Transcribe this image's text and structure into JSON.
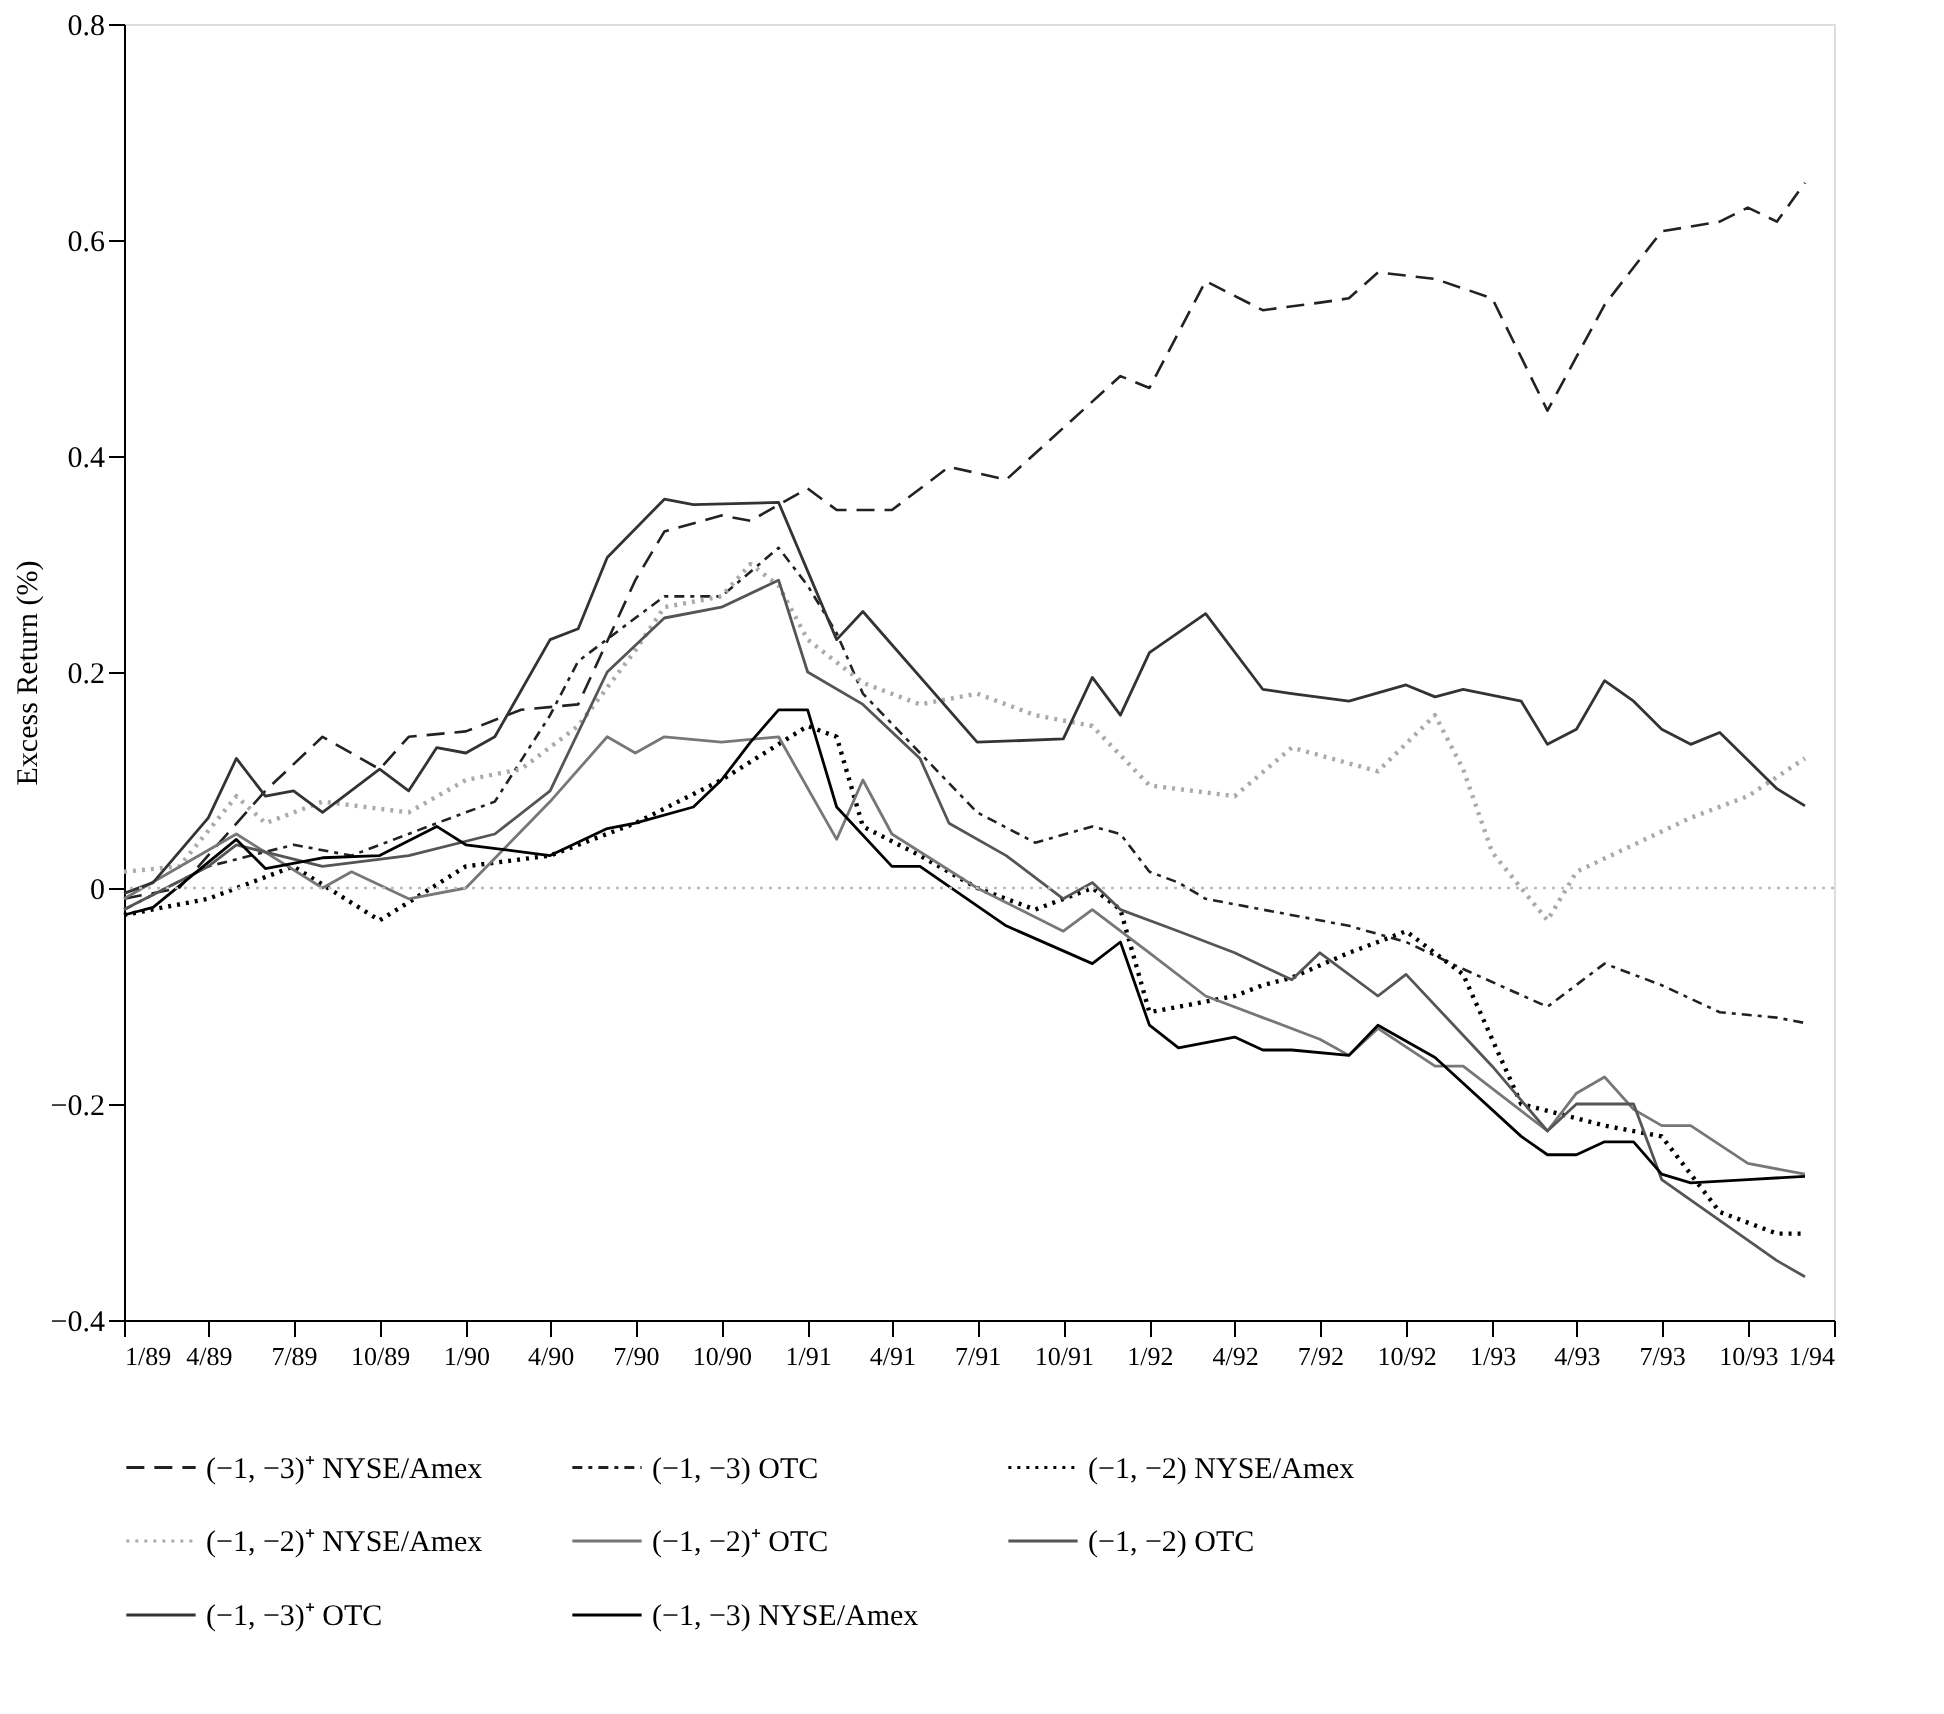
{
  "chart_data": {
    "type": "line",
    "ylabel": "Excess Return (%)",
    "xlim": [
      "1989-01",
      "1994-01"
    ],
    "xticks": [
      {
        "value": "1989-01",
        "label": "1/89"
      },
      {
        "value": "1989-04",
        "label": "4/89"
      },
      {
        "value": "1989-07",
        "label": "7/89"
      },
      {
        "value": "1989-10",
        "label": "10/89"
      },
      {
        "value": "1990-01",
        "label": "1/90"
      },
      {
        "value": "1990-04",
        "label": "4/90"
      },
      {
        "value": "1990-07",
        "label": "7/90"
      },
      {
        "value": "1990-10",
        "label": "10/90"
      },
      {
        "value": "1991-01",
        "label": "1/91"
      },
      {
        "value": "1991-04",
        "label": "4/91"
      },
      {
        "value": "1991-07",
        "label": "7/91"
      },
      {
        "value": "1991-10",
        "label": "10/91"
      },
      {
        "value": "1992-01",
        "label": "1/92"
      },
      {
        "value": "1992-04",
        "label": "4/92"
      },
      {
        "value": "1992-07",
        "label": "7/92"
      },
      {
        "value": "1992-10",
        "label": "10/92"
      },
      {
        "value": "1993-01",
        "label": "1/93"
      },
      {
        "value": "1993-04",
        "label": "4/93"
      },
      {
        "value": "1993-07",
        "label": "7/93"
      },
      {
        "value": "1993-10",
        "label": "10/93"
      },
      {
        "value": "1994-01",
        "label": "1/94"
      }
    ],
    "ylim": [
      -0.4,
      0.8
    ],
    "yticks": [
      -0.4,
      -0.2,
      0,
      0.2,
      0.4,
      0.6,
      0.8
    ],
    "grid": false,
    "legend": "bottom",
    "marker": "none",
    "ref_lines": [
      {
        "axis": "y",
        "value": 0,
        "color": "#bbbbbb",
        "line_style": "dotted"
      }
    ],
    "series": [
      {
        "name": "(−1, −3)⁺ NYSE/Amex",
        "color": "#222222",
        "line_style": "dashed",
        "x": [
          "1989-01",
          "1989-03",
          "1989-06",
          "1989-08",
          "1989-10",
          "1989-11",
          "1990-01",
          "1990-03",
          "1990-05",
          "1990-07",
          "1990-08",
          "1990-10",
          "1990-11",
          "1991-01",
          "1991-02",
          "1991-04",
          "1991-06",
          "1991-08",
          "1991-12",
          "1992-01",
          "1992-03",
          "1992-05",
          "1992-07",
          "1992-08",
          "1992-09",
          "1992-11",
          "1993-01",
          "1993-03",
          "1993-05",
          "1993-07",
          "1993-09",
          "1993-10",
          "1993-11",
          "1993-12"
        ],
        "values": [
          -0.01,
          0.0,
          0.09,
          0.14,
          0.11,
          0.14,
          0.145,
          0.165,
          0.17,
          0.285,
          0.33,
          0.345,
          0.34,
          0.37,
          0.35,
          0.35,
          0.39,
          0.378,
          0.474,
          0.463,
          0.562,
          0.535,
          0.542,
          0.546,
          0.57,
          0.564,
          0.546,
          0.442,
          0.54,
          0.608,
          0.617,
          0.63,
          0.617,
          0.653
        ]
      },
      {
        "name": "(−1, −3) OTC",
        "color": "#222222",
        "line_style": "dashdot",
        "x": [
          "1989-01",
          "1989-04",
          "1989-07",
          "1989-09",
          "1989-12",
          "1990-02",
          "1990-04",
          "1990-05",
          "1990-07",
          "1990-08",
          "1990-10",
          "1990-12",
          "1991-01",
          "1991-02",
          "1991-03",
          "1991-05",
          "1991-07",
          "1991-09",
          "1991-11",
          "1991-12",
          "1992-01",
          "1992-02",
          "1992-03",
          "1992-05",
          "1992-08",
          "1992-10",
          "1992-12",
          "1993-03",
          "1993-05",
          "1993-07",
          "1993-09",
          "1993-11",
          "1993-12"
        ],
        "values": [
          -0.02,
          0.02,
          0.04,
          0.03,
          0.06,
          0.08,
          0.16,
          0.21,
          0.25,
          0.27,
          0.27,
          0.315,
          0.28,
          0.236,
          0.18,
          0.125,
          0.07,
          0.042,
          0.057,
          0.05,
          0.015,
          0.005,
          -0.01,
          -0.02,
          -0.035,
          -0.05,
          -0.075,
          -0.11,
          -0.07,
          -0.09,
          -0.115,
          -0.12,
          -0.125
        ]
      },
      {
        "name": "(−1, −2) NYSE/Amex",
        "color": "#000000",
        "line_style": "dotted",
        "x": [
          "1989-01",
          "1989-04",
          "1989-07",
          "1989-10",
          "1990-01",
          "1990-04",
          "1990-07",
          "1990-10",
          "1991-01",
          "1991-02",
          "1991-03",
          "1991-05",
          "1991-07",
          "1991-09",
          "1991-11",
          "1991-12",
          "1992-01",
          "1992-02",
          "1992-04",
          "1992-05",
          "1992-06",
          "1992-08",
          "1992-09",
          "1992-10",
          "1992-12",
          "1993-02",
          "1993-05",
          "1993-07",
          "1993-09",
          "1993-11",
          "1993-12"
        ],
        "values": [
          -0.025,
          -0.01,
          0.02,
          -0.03,
          0.02,
          0.03,
          0.06,
          0.1,
          0.15,
          0.14,
          0.057,
          0.03,
          0.0,
          -0.02,
          0.0,
          -0.02,
          -0.115,
          -0.11,
          -0.1,
          -0.09,
          -0.083,
          -0.06,
          -0.05,
          -0.04,
          -0.08,
          -0.2,
          -0.22,
          -0.23,
          -0.3,
          -0.32,
          -0.32
        ]
      },
      {
        "name": "(−1, −2)⁺ NYSE/Amex",
        "color": "#aaaaaa",
        "line_style": "dotted",
        "x": [
          "1989-01",
          "1989-03",
          "1989-05",
          "1989-06",
          "1989-08",
          "1989-11",
          "1990-01",
          "1990-03",
          "1990-05",
          "1990-07",
          "1990-08",
          "1990-10",
          "1990-11",
          "1990-12",
          "1991-01",
          "1991-03",
          "1991-05",
          "1991-07",
          "1991-09",
          "1991-11",
          "1992-01",
          "1992-04",
          "1992-06",
          "1992-09",
          "1992-11",
          "1992-12",
          "1993-01",
          "1993-03",
          "1993-04",
          "1993-06",
          "1993-08",
          "1993-10",
          "1993-12"
        ],
        "values": [
          0.015,
          0.02,
          0.085,
          0.06,
          0.08,
          0.07,
          0.1,
          0.11,
          0.15,
          0.22,
          0.26,
          0.27,
          0.3,
          0.28,
          0.23,
          0.19,
          0.17,
          0.18,
          0.16,
          0.15,
          0.095,
          0.085,
          0.13,
          0.108,
          0.16,
          0.11,
          0.033,
          -0.03,
          0.015,
          0.04,
          0.065,
          0.085,
          0.12
        ]
      },
      {
        "name": "(−1, −2)⁺ OTC",
        "color": "#777777",
        "line_style": "solid",
        "x": [
          "1989-01",
          "1989-05",
          "1989-08",
          "1989-09",
          "1989-11",
          "1990-01",
          "1990-04",
          "1990-06",
          "1990-07",
          "1990-08",
          "1990-10",
          "1990-12",
          "1991-02",
          "1991-03",
          "1991-04",
          "1991-07",
          "1991-10",
          "1991-11",
          "1992-01",
          "1992-03",
          "1992-05",
          "1992-07",
          "1992-08",
          "1992-09",
          "1992-11",
          "1992-12",
          "1993-03",
          "1993-04",
          "1993-05",
          "1993-06",
          "1993-07",
          "1993-08",
          "1993-10",
          "1993-12"
        ],
        "values": [
          -0.01,
          0.05,
          0.0,
          0.015,
          -0.01,
          0.0,
          0.08,
          0.14,
          0.125,
          0.14,
          0.135,
          0.14,
          0.045,
          0.1,
          0.05,
          0.0,
          -0.04,
          -0.02,
          -0.06,
          -0.1,
          -0.12,
          -0.14,
          -0.155,
          -0.13,
          -0.165,
          -0.165,
          -0.225,
          -0.19,
          -0.175,
          -0.205,
          -0.22,
          -0.22,
          -0.255,
          -0.265
        ]
      },
      {
        "name": "(−1, −2) OTC",
        "color": "#555555",
        "line_style": "solid",
        "x": [
          "1989-01",
          "1989-04",
          "1989-05",
          "1989-08",
          "1989-11",
          "1990-02",
          "1990-04",
          "1990-06",
          "1990-08",
          "1990-10",
          "1990-12",
          "1991-01",
          "1991-03",
          "1991-05",
          "1991-06",
          "1991-08",
          "1991-10",
          "1991-11",
          "1991-12",
          "1992-02",
          "1992-04",
          "1992-06",
          "1992-07",
          "1992-09",
          "1992-10",
          "1993-01",
          "1993-03",
          "1993-04",
          "1993-06",
          "1993-07",
          "1993-11",
          "1993-12"
        ],
        "values": [
          -0.02,
          0.02,
          0.04,
          0.02,
          0.03,
          0.05,
          0.09,
          0.2,
          0.25,
          0.26,
          0.285,
          0.2,
          0.17,
          0.12,
          0.06,
          0.03,
          -0.01,
          0.005,
          -0.02,
          -0.04,
          -0.06,
          -0.085,
          -0.06,
          -0.1,
          -0.08,
          -0.165,
          -0.225,
          -0.2,
          -0.2,
          -0.27,
          -0.345,
          -0.36
        ]
      },
      {
        "name": "(−1, −3)⁺ OTC",
        "color": "#333333",
        "line_style": "solid",
        "x": [
          "1989-01",
          "1989-02",
          "1989-04",
          "1989-05",
          "1989-06",
          "1989-07",
          "1989-08",
          "1989-10",
          "1989-11",
          "1989-12",
          "1990-01",
          "1990-02",
          "1990-04",
          "1990-05",
          "1990-06",
          "1990-08",
          "1990-09",
          "1990-12",
          "1991-02",
          "1991-03",
          "1991-07",
          "1991-10",
          "1991-11",
          "1991-12",
          "1992-01",
          "1992-03",
          "1992-05",
          "1992-06",
          "1992-08",
          "1992-10",
          "1992-11",
          "1992-12",
          "1993-02",
          "1993-03",
          "1993-04",
          "1993-05",
          "1993-06",
          "1993-07",
          "1993-08",
          "1993-09",
          "1993-11",
          "1993-12"
        ],
        "values": [
          -0.005,
          0.005,
          0.065,
          0.12,
          0.085,
          0.09,
          0.07,
          0.11,
          0.09,
          0.13,
          0.125,
          0.14,
          0.23,
          0.24,
          0.306,
          0.36,
          0.355,
          0.357,
          0.23,
          0.256,
          0.135,
          0.138,
          0.195,
          0.16,
          0.218,
          0.254,
          0.184,
          0.18,
          0.173,
          0.188,
          0.177,
          0.184,
          0.173,
          0.133,
          0.147,
          0.192,
          0.173,
          0.147,
          0.133,
          0.144,
          0.092,
          0.076
        ]
      },
      {
        "name": "(−1, −3) NYSE/Amex",
        "color": "#000000",
        "line_style": "solid",
        "x": [
          "1989-01",
          "1989-02",
          "1989-05",
          "1989-06",
          "1989-08",
          "1989-10",
          "1989-12",
          "1990-01",
          "1990-04",
          "1990-06",
          "1990-07",
          "1990-09",
          "1990-10",
          "1990-11",
          "1990-12",
          "1991-01",
          "1991-02",
          "1991-04",
          "1991-05",
          "1991-08",
          "1991-11",
          "1991-12",
          "1992-01",
          "1992-02",
          "1992-04",
          "1992-05",
          "1992-06",
          "1992-08",
          "1992-09",
          "1992-11",
          "1993-02",
          "1993-03",
          "1993-04",
          "1993-05",
          "1993-06",
          "1993-07",
          "1993-08",
          "1993-10",
          "1993-12"
        ],
        "values": [
          -0.025,
          -0.018,
          0.045,
          0.018,
          0.028,
          0.03,
          0.057,
          0.04,
          0.03,
          0.055,
          0.06,
          0.075,
          0.1,
          0.135,
          0.165,
          0.165,
          0.075,
          0.02,
          0.02,
          -0.035,
          -0.07,
          -0.05,
          -0.127,
          -0.148,
          -0.138,
          -0.15,
          -0.15,
          -0.155,
          -0.127,
          -0.157,
          -0.23,
          -0.247,
          -0.247,
          -0.235,
          -0.235,
          -0.265,
          -0.273,
          -0.27,
          -0.267
        ]
      }
    ]
  }
}
